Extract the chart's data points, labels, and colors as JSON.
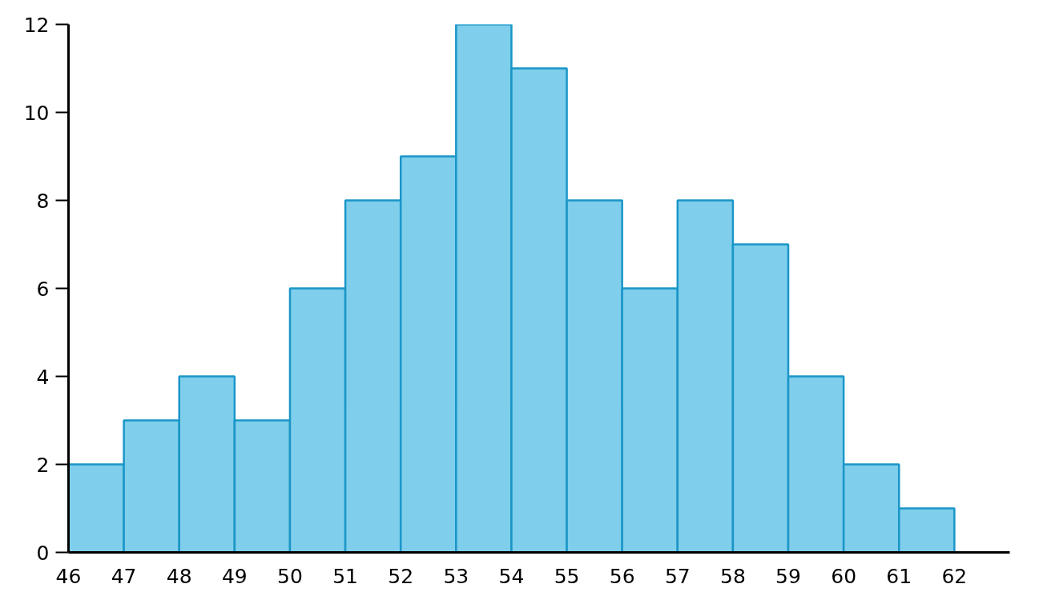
{
  "chart_data": {
    "type": "histogram",
    "bins": [
      46,
      47,
      48,
      49,
      50,
      51,
      52,
      53,
      54,
      55,
      56,
      57,
      58,
      59,
      60,
      61,
      62
    ],
    "values": [
      2,
      3,
      4,
      3,
      6,
      8,
      9,
      12,
      11,
      8,
      6,
      8,
      7,
      4,
      2,
      1
    ],
    "color": "#7fceeb",
    "xlim": [
      46,
      63
    ],
    "ylim": [
      0,
      12
    ],
    "xticks": [
      46,
      47,
      48,
      49,
      50,
      51,
      52,
      53,
      54,
      55,
      56,
      57,
      58,
      59,
      60,
      61,
      62
    ],
    "yticks": [
      0,
      2,
      4,
      6,
      8,
      10,
      12
    ],
    "grid": false
  }
}
